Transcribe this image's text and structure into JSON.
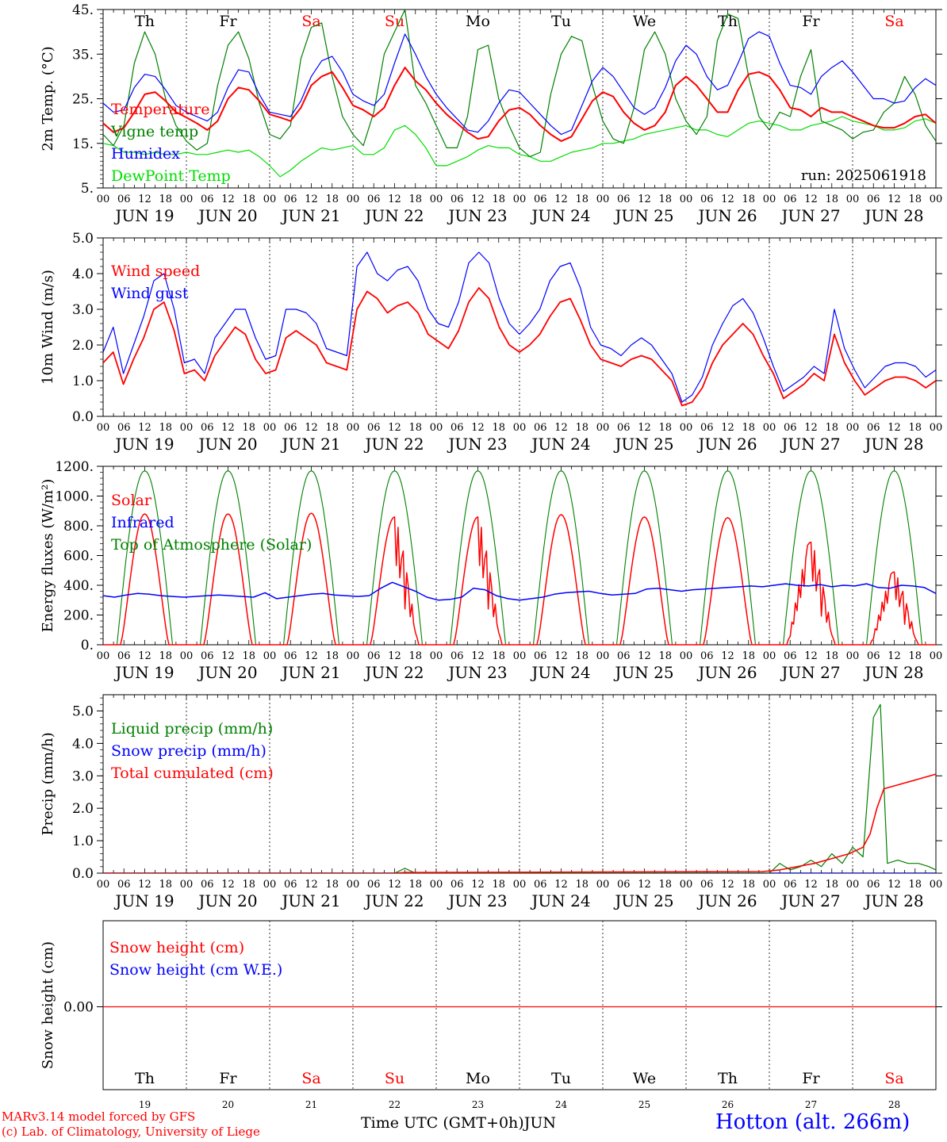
{
  "colors": {
    "red": "#ff0000",
    "green": "#008000",
    "blue": "#0000ff",
    "light_green": "#00dd00",
    "black": "#000000"
  },
  "days": [
    {
      "abbr": "Th",
      "weekend": false,
      "date": "JUN 19",
      "num": "19"
    },
    {
      "abbr": "Fr",
      "weekend": false,
      "date": "JUN 20",
      "num": "20"
    },
    {
      "abbr": "Sa",
      "weekend": true,
      "date": "JUN 21",
      "num": "21"
    },
    {
      "abbr": "Su",
      "weekend": true,
      "date": "JUN 22",
      "num": "22"
    },
    {
      "abbr": "Mo",
      "weekend": false,
      "date": "JUN 23",
      "num": "23"
    },
    {
      "abbr": "Tu",
      "weekend": false,
      "date": "JUN 24",
      "num": "24"
    },
    {
      "abbr": "We",
      "weekend": false,
      "date": "JUN 25",
      "num": "25"
    },
    {
      "abbr": "Th",
      "weekend": false,
      "date": "JUN 26",
      "num": "26"
    },
    {
      "abbr": "Fr",
      "weekend": false,
      "date": "JUN 27",
      "num": "27"
    },
    {
      "abbr": "Sa",
      "weekend": true,
      "date": "JUN 28",
      "num": "28"
    }
  ],
  "hour_labels": [
    "00",
    "06",
    "12",
    "18"
  ],
  "hour_label_end": "00",
  "footer": {
    "model_line": "MARv3.14 model forced by GFS",
    "credit_line": "(c) Lab. of Climatology, University of Liege",
    "xlabel": "Time UTC (GMT+0h)",
    "month": "JUN",
    "station": "Hotton (alt. 266m)"
  },
  "chart_data": [
    {
      "id": "temperature",
      "type": "line",
      "ylabel": "2m Temp. (°C)",
      "ylim": [
        5,
        45
      ],
      "yticks": [
        "5.",
        "15.",
        "25.",
        "35.",
        "45."
      ],
      "annotation": "run: 2025061918",
      "x": "hours from 2025-06-19 00 UTC, every 3 h, 0–240",
      "series": [
        {
          "name": "Temperature",
          "color": "red",
          "values": [
            19.5,
            17.5,
            18.5,
            22,
            26,
            26.5,
            24.5,
            22,
            20.8,
            19.5,
            18,
            20,
            25,
            27.5,
            27,
            24.5,
            21.5,
            20.8,
            20,
            23,
            28,
            30,
            31,
            27.5,
            23.5,
            22.5,
            21,
            23,
            28,
            32,
            29,
            27,
            24,
            21.5,
            19.5,
            17.5,
            16,
            16.5,
            20,
            22.5,
            23,
            21.5,
            19,
            17,
            15.5,
            16.5,
            20.5,
            24.5,
            26.5,
            25.5,
            22,
            19.5,
            18,
            19,
            22,
            28,
            30,
            28,
            25,
            22,
            22,
            27,
            30.5,
            31,
            30,
            27,
            23,
            22.5,
            21,
            23,
            22,
            22,
            21,
            20,
            19,
            18.5,
            18.5,
            19.5,
            21,
            21.5,
            19.5
          ]
        },
        {
          "name": "Vigne temp",
          "color": "green",
          "values": [
            17,
            14.5,
            19,
            33,
            40,
            35,
            25,
            19,
            15.5,
            13.5,
            15,
            28,
            37,
            40,
            34,
            24,
            17,
            16,
            19,
            34,
            41,
            42,
            30,
            21,
            17,
            14.5,
            22,
            35,
            40,
            45,
            28,
            24,
            19,
            14,
            14,
            21,
            36,
            37,
            25,
            19,
            14,
            12,
            13,
            26,
            35,
            39,
            38,
            28,
            20,
            16,
            15,
            23,
            36,
            40,
            35,
            25,
            20,
            17,
            21,
            38,
            44,
            43,
            30,
            21,
            18,
            22,
            21,
            30,
            36,
            20,
            19,
            18,
            16,
            17.5,
            18,
            22,
            24,
            30,
            26,
            19,
            15.5
          ]
        },
        {
          "name": "Humidex",
          "color": "blue",
          "values": [
            24,
            22,
            22.5,
            27.5,
            30.5,
            30,
            27,
            23.5,
            22,
            21,
            20,
            22,
            27.5,
            31.5,
            31,
            26,
            22,
            21.5,
            21,
            24.5,
            30,
            33.5,
            34.5,
            31,
            26,
            24.5,
            23.5,
            26,
            33,
            39.5,
            35,
            30,
            26,
            23,
            20.5,
            18,
            17.5,
            20,
            24,
            27,
            26.5,
            24,
            21.5,
            19,
            17,
            18,
            23.5,
            29,
            32,
            30,
            26.5,
            23,
            21.5,
            23,
            27.5,
            33.5,
            37,
            35,
            30,
            27,
            28,
            33,
            38.5,
            40,
            39,
            33,
            28,
            27.5,
            26,
            30,
            32,
            33.5,
            31,
            28,
            25,
            25,
            24,
            24.5,
            27.5,
            29.5,
            28
          ]
        },
        {
          "name": "DewPoint Temp",
          "color": "light_green",
          "values": [
            15,
            14.5,
            13,
            13,
            12.5,
            13,
            12.5,
            12.5,
            13,
            12.5,
            12.5,
            13,
            13.5,
            13,
            13.5,
            12,
            10,
            7.5,
            9,
            11,
            12.5,
            14,
            13.5,
            14,
            14.5,
            12.5,
            12.5,
            14,
            18,
            19,
            17,
            14,
            10,
            10,
            11,
            12,
            13.5,
            14.5,
            14,
            14,
            12.5,
            12,
            11,
            11,
            12,
            13,
            13.5,
            14,
            15,
            15,
            15.5,
            16,
            17,
            17.5,
            18,
            18.5,
            19,
            18,
            18,
            17,
            16.5,
            18,
            19.5,
            20,
            19.5,
            19,
            18,
            18,
            19,
            19.5,
            20,
            21,
            20,
            19.5,
            19,
            18,
            18,
            18.5,
            20,
            20.5,
            19.5
          ]
        }
      ]
    },
    {
      "id": "wind",
      "type": "line",
      "ylabel": "10m Wind (m/s)",
      "ylim": [
        0,
        5
      ],
      "yticks": [
        "0.0",
        "1.0",
        "2.0",
        "3.0",
        "4.0",
        "5.0"
      ],
      "x": "hours from 2025-06-19 00 UTC, every 3 h, 0–240",
      "series": [
        {
          "name": "Wind speed",
          "color": "red",
          "values": [
            1.5,
            1.8,
            0.9,
            1.6,
            2.2,
            3.0,
            3.2,
            2.4,
            1.2,
            1.3,
            1.0,
            1.7,
            2.1,
            2.5,
            2.3,
            1.6,
            1.2,
            1.3,
            2.2,
            2.4,
            2.2,
            2.0,
            1.5,
            1.4,
            1.3,
            3.0,
            3.5,
            3.3,
            2.9,
            3.1,
            3.2,
            2.9,
            2.3,
            2.1,
            1.9,
            2.4,
            3.2,
            3.6,
            3.3,
            2.5,
            2.0,
            1.8,
            2.0,
            2.3,
            2.8,
            3.2,
            3.3,
            2.7,
            2.0,
            1.6,
            1.5,
            1.4,
            1.6,
            1.7,
            1.6,
            1.3,
            1.0,
            0.3,
            0.4,
            0.8,
            1.5,
            2.0,
            2.3,
            2.6,
            2.3,
            1.7,
            1.2,
            0.5,
            0.7,
            0.9,
            1.2,
            1.0,
            2.3,
            1.5,
            1.0,
            0.6,
            0.8,
            1.0,
            1.1,
            1.1,
            1.0,
            0.8,
            1.0
          ]
        },
        {
          "name": "Wind gust",
          "color": "blue",
          "values": [
            1.8,
            2.5,
            1.2,
            2.0,
            2.8,
            3.8,
            4.0,
            3.0,
            1.5,
            1.6,
            1.2,
            2.2,
            2.6,
            3.0,
            3.0,
            2.2,
            1.6,
            1.7,
            3.0,
            3.0,
            2.9,
            2.6,
            1.9,
            1.8,
            1.7,
            4.2,
            4.6,
            4.0,
            3.8,
            4.1,
            4.2,
            3.8,
            3.0,
            2.6,
            2.5,
            3.2,
            4.3,
            4.6,
            4.3,
            3.3,
            2.6,
            2.3,
            2.6,
            3.0,
            3.8,
            4.2,
            4.3,
            3.6,
            2.5,
            2.0,
            1.9,
            1.7,
            2.0,
            2.2,
            2.0,
            1.6,
            1.2,
            0.4,
            0.6,
            1.1,
            2.0,
            2.6,
            3.1,
            3.3,
            2.9,
            2.2,
            1.4,
            0.7,
            0.9,
            1.1,
            1.4,
            1.2,
            3.0,
            1.9,
            1.3,
            0.8,
            1.1,
            1.4,
            1.5,
            1.5,
            1.4,
            1.1,
            1.3
          ]
        }
      ]
    },
    {
      "id": "energy",
      "type": "line",
      "ylabel": "Energy fluxes (W/m²)",
      "ylim": [
        0,
        1200
      ],
      "yticks": [
        "0.",
        "200.",
        "400.",
        "600.",
        "800.",
        "1000.",
        "1200."
      ],
      "x": "hours from 2025-06-19 00 UTC, every 3 h, 0–240",
      "series": [
        {
          "name": "Solar",
          "color": "red",
          "daily_peaks": [
            880,
            880,
            885,
            860,
            860,
            875,
            860,
            855,
            690,
            490
          ],
          "irregular": [
            false,
            false,
            false,
            true,
            true,
            false,
            false,
            false,
            true,
            true
          ]
        },
        {
          "name": "Infrared",
          "color": "blue",
          "values": [
            330,
            320,
            335,
            345,
            340,
            330,
            325,
            320,
            325,
            330,
            335,
            330,
            325,
            320,
            350,
            310,
            320,
            330,
            340,
            345,
            335,
            330,
            325,
            330,
            380,
            420,
            390,
            360,
            320,
            300,
            305,
            320,
            380,
            370,
            330,
            310,
            300,
            310,
            320,
            340,
            350,
            355,
            360,
            345,
            335,
            340,
            345,
            375,
            380,
            370,
            360,
            370,
            375,
            380,
            385,
            390,
            395,
            390,
            400,
            410,
            400,
            395,
            405,
            390,
            400,
            395,
            410,
            385,
            380,
            400,
            395,
            385,
            345
          ]
        },
        {
          "name": "Top of Atmosphere (Solar)",
          "color": "green",
          "daily_peak": 1170,
          "sunrise_hour": 4,
          "sunset_hour": 20
        }
      ]
    },
    {
      "id": "precip",
      "type": "line",
      "ylabel": "Precip (mm/h)",
      "ylim": [
        0,
        5.5
      ],
      "yticks": [
        "0.0",
        "1.0",
        "2.0",
        "3.0",
        "4.0",
        "5.0"
      ],
      "x": "hours from 2025-06-19 00 UTC, every 3 h, 0–240",
      "series": [
        {
          "name": "Liquid precip (mm/h)",
          "color": "green",
          "points": [
            [
              0,
              0
            ],
            [
              84,
              0
            ],
            [
              87,
              0.15
            ],
            [
              90,
              0
            ],
            [
              192,
              0
            ],
            [
              195,
              0.3
            ],
            [
              198,
              0.1
            ],
            [
              201,
              0.2
            ],
            [
              204,
              0.4
            ],
            [
              207,
              0.2
            ],
            [
              210,
              0.6
            ],
            [
              213,
              0.3
            ],
            [
              216,
              0.8
            ],
            [
              219,
              0.5
            ],
            [
              222,
              4.8
            ],
            [
              224,
              5.2
            ],
            [
              226,
              0.3
            ],
            [
              229,
              0.4
            ],
            [
              232,
              0.3
            ],
            [
              235,
              0.3
            ],
            [
              238,
              0.2
            ],
            [
              240,
              0.1
            ]
          ]
        },
        {
          "name": "Snow precip (mm/h)",
          "color": "blue",
          "points": [
            [
              0,
              0
            ],
            [
              240,
              0
            ]
          ]
        },
        {
          "name": "Total cumulated (cm)",
          "color": "red",
          "points": [
            [
              0,
              0
            ],
            [
              84,
              0
            ],
            [
              87,
              0.02
            ],
            [
              190,
              0.05
            ],
            [
              195,
              0.1
            ],
            [
              200,
              0.2
            ],
            [
              205,
              0.3
            ],
            [
              210,
              0.45
            ],
            [
              215,
              0.6
            ],
            [
              219,
              0.8
            ],
            [
              221,
              1.2
            ],
            [
              223,
              2.0
            ],
            [
              225,
              2.6
            ],
            [
              230,
              2.75
            ],
            [
              235,
              2.9
            ],
            [
              240,
              3.05
            ]
          ]
        }
      ]
    },
    {
      "id": "snow",
      "type": "line",
      "ylabel": "Snow height (cm)",
      "yticks": [
        "0.00"
      ],
      "x": "hours from 2025-06-19 00 UTC, 0–240",
      "series": [
        {
          "name": "Snow height (cm)",
          "color": "red",
          "points": [
            [
              0,
              0
            ],
            [
              240,
              0
            ]
          ]
        },
        {
          "name": "Snow height (cm W.E.)",
          "color": "blue",
          "points": [
            [
              0,
              0
            ],
            [
              240,
              0
            ]
          ]
        }
      ]
    }
  ]
}
